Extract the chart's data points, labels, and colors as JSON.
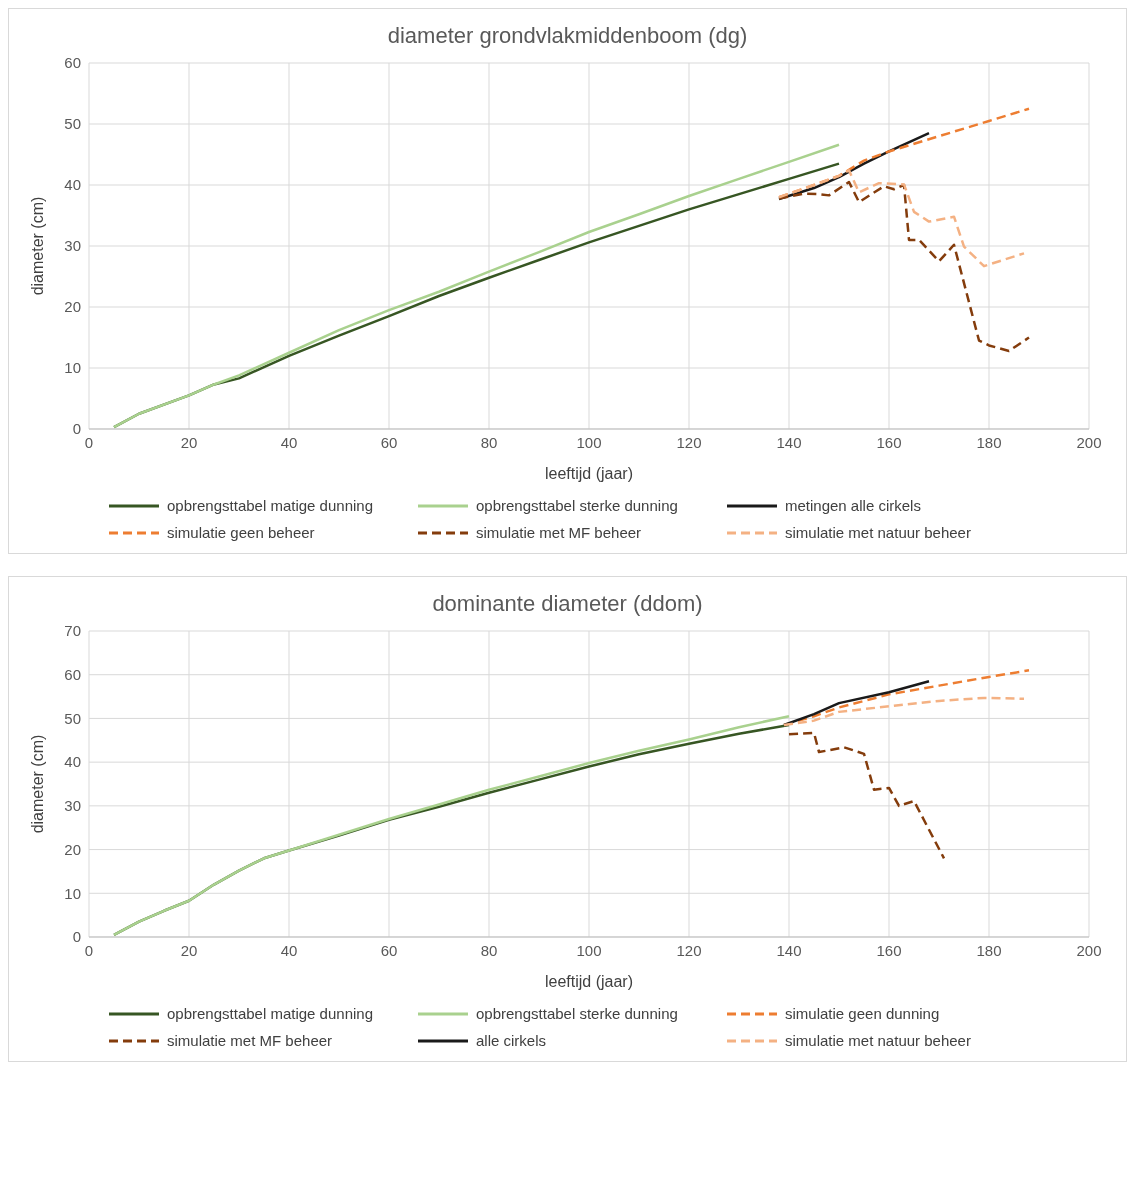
{
  "chart_data": [
    {
      "type": "line",
      "title": "diameter grondvlakmiddenboom (dg)",
      "xlabel": "leeftijd (jaar)",
      "ylabel": "diameter (cm)",
      "xlim": [
        0,
        200
      ],
      "xticks": [
        0,
        20,
        40,
        60,
        80,
        100,
        120,
        140,
        160,
        180,
        200
      ],
      "ylim": [
        0,
        60
      ],
      "yticks": [
        0,
        10,
        20,
        30,
        40,
        50,
        60
      ],
      "grid": true,
      "legend": "bottom",
      "series": [
        {
          "name": "opbrengsttabel matige dunning",
          "color": "#375623",
          "line_style": "solid",
          "x": [
            5,
            10,
            20,
            25,
            30,
            40,
            50,
            60,
            70,
            80,
            90,
            100,
            110,
            120,
            130,
            140,
            150
          ],
          "values": [
            0.3,
            2.5,
            5.5,
            7.3,
            8.3,
            12,
            15.3,
            18.5,
            21.8,
            24.8,
            27.7,
            30.6,
            33.3,
            36,
            38.5,
            41,
            43.5
          ]
        },
        {
          "name": "opbrengsttabel sterke dunning",
          "color": "#a9d18e",
          "line_style": "solid",
          "x": [
            5,
            10,
            20,
            25,
            30,
            40,
            50,
            60,
            70,
            80,
            90,
            100,
            110,
            120,
            130,
            140,
            150
          ],
          "values": [
            0.3,
            2.5,
            5.5,
            7.3,
            8.8,
            12.5,
            16.2,
            19.5,
            22.5,
            25.8,
            29,
            32.3,
            35.2,
            38.2,
            41,
            43.8,
            46.6
          ]
        },
        {
          "name": "metingen alle cirkels",
          "color": "#1a1a1a",
          "line_style": "solid",
          "x": [
            138,
            145,
            150,
            155,
            160,
            168
          ],
          "values": [
            37.7,
            39.5,
            41.3,
            43.5,
            45.5,
            48.5
          ]
        },
        {
          "name": "simulatie geen beheer",
          "color": "#ed7d31",
          "line_style": "dashed",
          "x": [
            138,
            145,
            150,
            155,
            160,
            170,
            180,
            188
          ],
          "values": [
            38,
            40,
            41.5,
            44,
            45.5,
            48,
            50.5,
            52.5
          ]
        },
        {
          "name": "simulatie met MF beheer",
          "color": "#843c0c",
          "line_style": "dashed",
          "x": [
            138,
            143,
            146,
            148,
            152,
            154,
            159,
            161,
            163,
            164,
            166,
            170,
            173,
            178,
            180,
            184,
            188
          ],
          "values": [
            37.8,
            38.6,
            38.5,
            38.3,
            40.5,
            37.2,
            39.8,
            39.3,
            40,
            31,
            31,
            27.5,
            30.2,
            14.5,
            13.7,
            12.8,
            15
          ]
        },
        {
          "name": "simulatie met natuur beheer",
          "color": "#f4b183",
          "line_style": "dashed",
          "x": [
            138,
            145,
            150,
            152,
            154,
            158,
            163,
            165,
            168,
            173,
            175,
            179,
            187
          ],
          "values": [
            38,
            40,
            41.5,
            42.4,
            38.8,
            40.3,
            40.1,
            35.6,
            34,
            34.8,
            29.9,
            26.7,
            28.8
          ]
        }
      ]
    },
    {
      "type": "line",
      "title": "dominante diameter (ddom)",
      "xlabel": "leeftijd (jaar)",
      "ylabel": "diameter (cm)",
      "xlim": [
        0,
        200
      ],
      "xticks": [
        0,
        20,
        40,
        60,
        80,
        100,
        120,
        140,
        160,
        180,
        200
      ],
      "ylim": [
        0,
        70
      ],
      "yticks": [
        0,
        10,
        20,
        30,
        40,
        50,
        60,
        70
      ],
      "grid": true,
      "legend": "bottom",
      "series": [
        {
          "name": "opbrengsttabel matige dunning",
          "color": "#375623",
          "line_style": "solid",
          "x": [
            5,
            10,
            15,
            20,
            25,
            30,
            35,
            40,
            50,
            60,
            70,
            80,
            90,
            100,
            110,
            120,
            130,
            140
          ],
          "values": [
            0.5,
            3.5,
            6,
            8.3,
            12,
            15.2,
            18,
            19.8,
            23.2,
            26.8,
            29.8,
            33,
            36,
            39,
            41.8,
            44.2,
            46.5,
            48.5
          ]
        },
        {
          "name": "opbrengsttabel sterke dunning",
          "color": "#a9d18e",
          "line_style": "solid",
          "x": [
            5,
            10,
            15,
            20,
            25,
            30,
            35,
            40,
            50,
            60,
            70,
            80,
            90,
            100,
            110,
            120,
            130,
            140
          ],
          "values": [
            0.5,
            3.5,
            6,
            8.3,
            12,
            15.2,
            18,
            19.8,
            23.4,
            27,
            30.3,
            33.7,
            36.7,
            39.8,
            42.6,
            45.2,
            48,
            50.5
          ]
        },
        {
          "name": "simulatie geen dunning",
          "color": "#ed7d31",
          "line_style": "dashed",
          "x": [
            139,
            145,
            150,
            160,
            170,
            180,
            188
          ],
          "values": [
            48.5,
            50.5,
            52.5,
            55.5,
            57.5,
            59.5,
            61
          ]
        },
        {
          "name": "simulatie met MF beheer",
          "color": "#843c0c",
          "line_style": "dashed",
          "x": [
            140,
            145,
            146,
            151,
            155,
            157,
            160,
            162,
            165,
            171
          ],
          "values": [
            46.4,
            46.7,
            42.3,
            43.4,
            41.9,
            33.7,
            34.1,
            30,
            31.1,
            18
          ]
        },
        {
          "name": "alle cirkels",
          "color": "#1a1a1a",
          "line_style": "solid",
          "x": [
            139,
            145,
            150,
            160,
            168
          ],
          "values": [
            48.5,
            51,
            53.5,
            56,
            58.5
          ]
        },
        {
          "name": "simulatie met natuur beheer",
          "color": "#f4b183",
          "line_style": "dashed",
          "x": [
            139,
            145,
            150,
            161,
            170,
            179,
            187
          ],
          "values": [
            48.5,
            49.5,
            51.5,
            52.9,
            54,
            54.7,
            54.5
          ]
        }
      ]
    }
  ]
}
